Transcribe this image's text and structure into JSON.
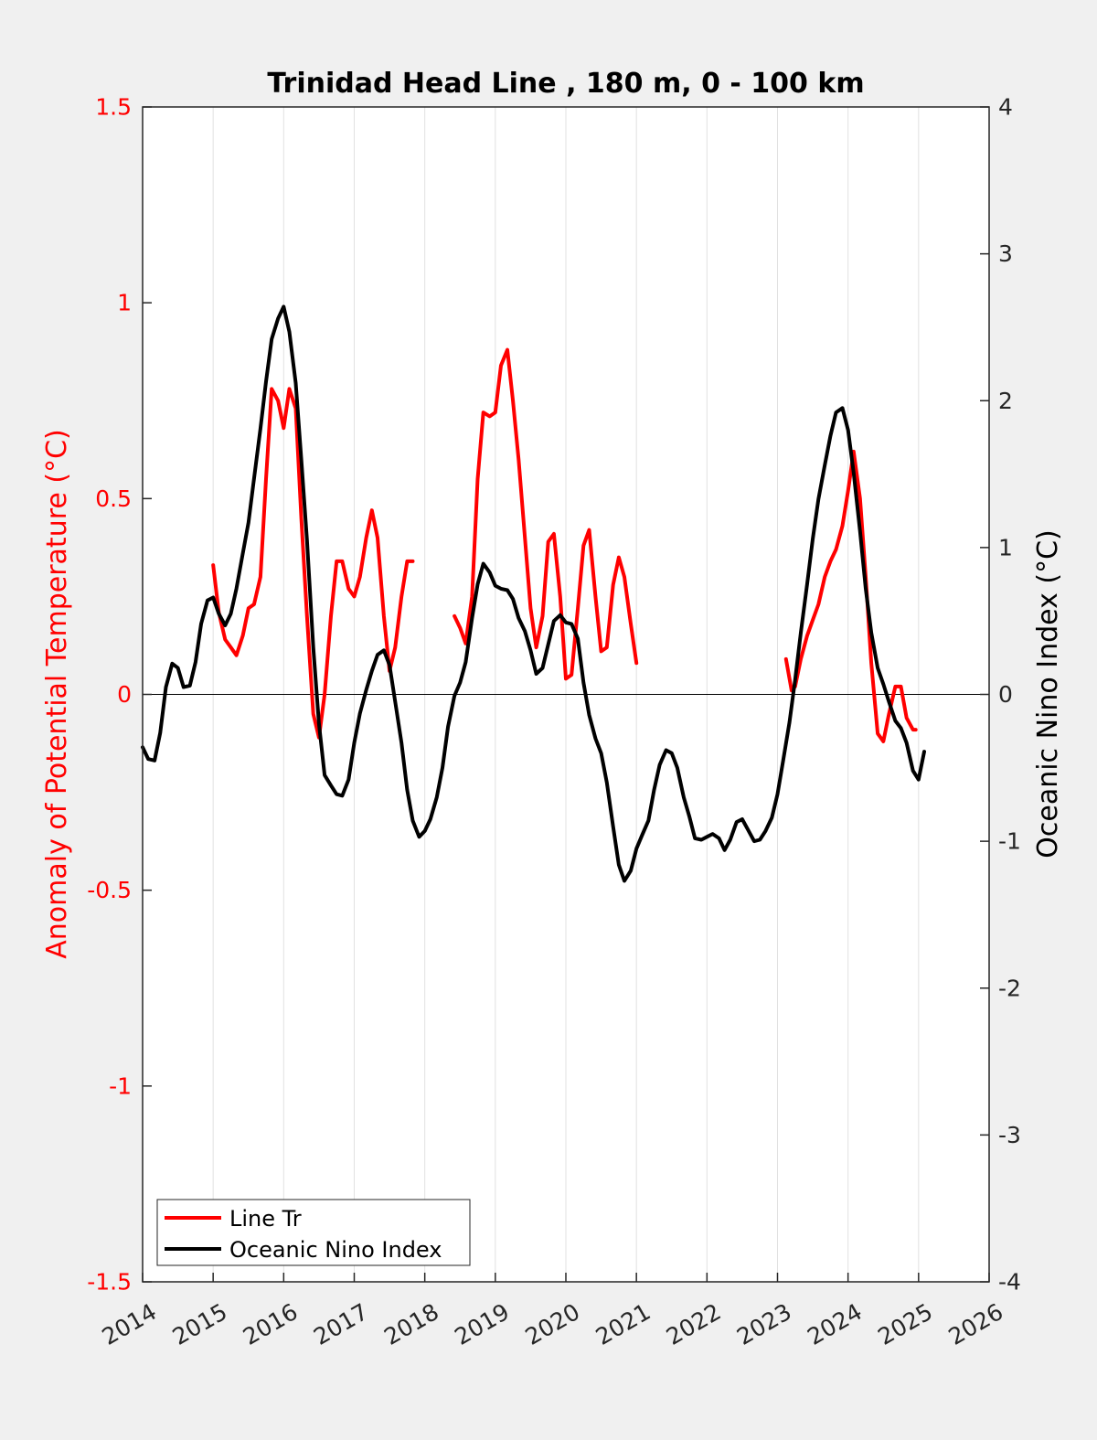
{
  "chart_data": {
    "type": "line",
    "title": "Trinidad Head Line , 180 m, 0 - 100 km",
    "xlabel": "",
    "ylabel_left": "Anomaly of Potential Temperature (°C)",
    "ylabel_right": "Oceanic Nino Index (°C)",
    "xlim": [
      2014,
      2026
    ],
    "ylim_left": [
      -1.5,
      1.5
    ],
    "ylim_right": [
      -4,
      4
    ],
    "x_ticks": [
      2014,
      2015,
      2016,
      2017,
      2018,
      2019,
      2020,
      2021,
      2022,
      2023,
      2024,
      2025,
      2026
    ],
    "x_tick_labels": [
      "2014",
      "2015",
      "2016",
      "2017",
      "2018",
      "2019",
      "2020",
      "2021",
      "2022",
      "2023",
      "2024",
      "2025",
      "2026"
    ],
    "y_ticks_left": [
      -1.5,
      -1,
      -0.5,
      0,
      0.5,
      1,
      1.5
    ],
    "y_tick_labels_left": [
      "-1.5",
      "-1",
      "-0.5",
      "0",
      "0.5",
      "1",
      "1.5"
    ],
    "y_ticks_right": [
      -4,
      -3,
      -2,
      -1,
      0,
      1,
      2,
      3,
      4
    ],
    "y_tick_labels_right": [
      "-4",
      "-3",
      "-2",
      "-1",
      "0",
      "1",
      "2",
      "3",
      "4"
    ],
    "grid": "x-only",
    "legend_position": "bottom-left",
    "series": [
      {
        "name": "Line Tr",
        "axis": "left",
        "color": "#ff0000",
        "segments": [
          [
            [
              2015.0,
              0.33
            ],
            [
              2015.08,
              0.21
            ],
            [
              2015.17,
              0.14
            ],
            [
              2015.25,
              0.12
            ],
            [
              2015.33,
              0.1
            ],
            [
              2015.42,
              0.15
            ],
            [
              2015.5,
              0.22
            ],
            [
              2015.58,
              0.23
            ],
            [
              2015.67,
              0.3
            ],
            [
              2015.75,
              0.55
            ],
            [
              2015.83,
              0.78
            ],
            [
              2015.92,
              0.75
            ],
            [
              2016.0,
              0.68
            ],
            [
              2016.08,
              0.78
            ],
            [
              2016.17,
              0.73
            ],
            [
              2016.25,
              0.45
            ],
            [
              2016.33,
              0.2
            ],
            [
              2016.42,
              -0.05
            ],
            [
              2016.5,
              -0.11
            ],
            [
              2016.58,
              0.0
            ],
            [
              2016.67,
              0.2
            ],
            [
              2016.75,
              0.34
            ],
            [
              2016.83,
              0.34
            ],
            [
              2016.92,
              0.27
            ],
            [
              2017.0,
              0.25
            ],
            [
              2017.08,
              0.3
            ],
            [
              2017.17,
              0.4
            ],
            [
              2017.25,
              0.47
            ],
            [
              2017.33,
              0.4
            ],
            [
              2017.42,
              0.2
            ],
            [
              2017.5,
              0.06
            ],
            [
              2017.58,
              0.12
            ],
            [
              2017.67,
              0.25
            ],
            [
              2017.75,
              0.34
            ],
            [
              2017.83,
              0.34
            ]
          ],
          [
            [
              2018.42,
              0.2
            ],
            [
              2018.5,
              0.17
            ],
            [
              2018.58,
              0.13
            ],
            [
              2018.67,
              0.25
            ],
            [
              2018.75,
              0.55
            ],
            [
              2018.83,
              0.72
            ],
            [
              2018.92,
              0.71
            ],
            [
              2019.0,
              0.72
            ],
            [
              2019.08,
              0.84
            ],
            [
              2019.17,
              0.88
            ],
            [
              2019.25,
              0.75
            ],
            [
              2019.33,
              0.6
            ],
            [
              2019.42,
              0.4
            ],
            [
              2019.5,
              0.22
            ],
            [
              2019.58,
              0.12
            ],
            [
              2019.67,
              0.2
            ],
            [
              2019.75,
              0.39
            ],
            [
              2019.83,
              0.41
            ],
            [
              2019.92,
              0.25
            ],
            [
              2020.0,
              0.04
            ],
            [
              2020.08,
              0.05
            ],
            [
              2020.17,
              0.22
            ],
            [
              2020.25,
              0.38
            ],
            [
              2020.33,
              0.42
            ],
            [
              2020.42,
              0.25
            ],
            [
              2020.5,
              0.11
            ],
            [
              2020.58,
              0.12
            ],
            [
              2020.67,
              0.28
            ],
            [
              2020.75,
              0.35
            ],
            [
              2020.83,
              0.3
            ],
            [
              2020.92,
              0.18
            ],
            [
              2021.0,
              0.08
            ]
          ],
          [
            [
              2023.12,
              0.09
            ],
            [
              2023.2,
              0.01
            ],
            [
              2023.25,
              0.02
            ],
            [
              2023.33,
              0.09
            ],
            [
              2023.42,
              0.15
            ],
            [
              2023.5,
              0.19
            ],
            [
              2023.58,
              0.23
            ],
            [
              2023.67,
              0.3
            ],
            [
              2023.75,
              0.34
            ],
            [
              2023.83,
              0.37
            ],
            [
              2023.92,
              0.43
            ],
            [
              2024.0,
              0.52
            ],
            [
              2024.08,
              0.62
            ],
            [
              2024.17,
              0.5
            ],
            [
              2024.25,
              0.3
            ],
            [
              2024.33,
              0.08
            ],
            [
              2024.42,
              -0.1
            ],
            [
              2024.5,
              -0.12
            ],
            [
              2024.58,
              -0.05
            ],
            [
              2024.67,
              0.02
            ],
            [
              2024.75,
              0.02
            ],
            [
              2024.83,
              -0.06
            ],
            [
              2024.92,
              -0.09
            ],
            [
              2024.96,
              -0.09
            ]
          ]
        ]
      },
      {
        "name": "Oceanic Nino Index",
        "axis": "right",
        "color": "#000000",
        "segments": [
          [
            [
              2014.0,
              -0.36
            ],
            [
              2014.08,
              -0.44
            ],
            [
              2014.17,
              -0.45
            ],
            [
              2014.25,
              -0.26
            ],
            [
              2014.33,
              0.05
            ],
            [
              2014.42,
              0.21
            ],
            [
              2014.5,
              0.18
            ],
            [
              2014.58,
              0.05
            ],
            [
              2014.67,
              0.06
            ],
            [
              2014.75,
              0.22
            ],
            [
              2014.83,
              0.48
            ],
            [
              2014.92,
              0.64
            ],
            [
              2015.0,
              0.66
            ],
            [
              2015.08,
              0.55
            ],
            [
              2015.17,
              0.47
            ],
            [
              2015.25,
              0.55
            ],
            [
              2015.33,
              0.72
            ],
            [
              2015.42,
              0.96
            ],
            [
              2015.5,
              1.17
            ],
            [
              2015.58,
              1.47
            ],
            [
              2015.67,
              1.81
            ],
            [
              2015.75,
              2.13
            ],
            [
              2015.83,
              2.42
            ],
            [
              2015.92,
              2.56
            ],
            [
              2016.0,
              2.64
            ],
            [
              2016.08,
              2.47
            ],
            [
              2016.17,
              2.12
            ],
            [
              2016.25,
              1.6
            ],
            [
              2016.33,
              1.05
            ],
            [
              2016.42,
              0.32
            ],
            [
              2016.5,
              -0.2
            ],
            [
              2016.58,
              -0.55
            ],
            [
              2016.67,
              -0.62
            ],
            [
              2016.75,
              -0.68
            ],
            [
              2016.83,
              -0.69
            ],
            [
              2016.92,
              -0.58
            ],
            [
              2017.0,
              -0.33
            ],
            [
              2017.08,
              -0.13
            ],
            [
              2017.17,
              0.03
            ],
            [
              2017.25,
              0.16
            ],
            [
              2017.33,
              0.27
            ],
            [
              2017.42,
              0.3
            ],
            [
              2017.5,
              0.2
            ],
            [
              2017.58,
              -0.05
            ],
            [
              2017.67,
              -0.33
            ],
            [
              2017.75,
              -0.65
            ],
            [
              2017.83,
              -0.86
            ],
            [
              2017.92,
              -0.97
            ],
            [
              2018.0,
              -0.93
            ],
            [
              2018.08,
              -0.85
            ],
            [
              2018.17,
              -0.7
            ],
            [
              2018.25,
              -0.5
            ],
            [
              2018.33,
              -0.22
            ],
            [
              2018.42,
              -0.01
            ],
            [
              2018.5,
              0.08
            ],
            [
              2018.58,
              0.22
            ],
            [
              2018.67,
              0.52
            ],
            [
              2018.75,
              0.75
            ],
            [
              2018.83,
              0.89
            ],
            [
              2018.92,
              0.83
            ],
            [
              2019.0,
              0.74
            ],
            [
              2019.08,
              0.72
            ],
            [
              2019.17,
              0.71
            ],
            [
              2019.25,
              0.65
            ],
            [
              2019.33,
              0.52
            ],
            [
              2019.42,
              0.43
            ],
            [
              2019.5,
              0.3
            ],
            [
              2019.58,
              0.14
            ],
            [
              2019.67,
              0.18
            ],
            [
              2019.75,
              0.34
            ],
            [
              2019.83,
              0.5
            ],
            [
              2019.92,
              0.54
            ],
            [
              2020.0,
              0.49
            ],
            [
              2020.08,
              0.48
            ],
            [
              2020.17,
              0.38
            ],
            [
              2020.25,
              0.08
            ],
            [
              2020.33,
              -0.14
            ],
            [
              2020.42,
              -0.3
            ],
            [
              2020.5,
              -0.4
            ],
            [
              2020.58,
              -0.6
            ],
            [
              2020.67,
              -0.9
            ],
            [
              2020.75,
              -1.16
            ],
            [
              2020.83,
              -1.27
            ],
            [
              2020.92,
              -1.2
            ],
            [
              2021.0,
              -1.05
            ],
            [
              2021.08,
              -0.96
            ],
            [
              2021.17,
              -0.86
            ],
            [
              2021.25,
              -0.65
            ],
            [
              2021.33,
              -0.48
            ],
            [
              2021.42,
              -0.38
            ],
            [
              2021.5,
              -0.4
            ],
            [
              2021.58,
              -0.5
            ],
            [
              2021.67,
              -0.7
            ],
            [
              2021.75,
              -0.83
            ],
            [
              2021.83,
              -0.98
            ],
            [
              2021.92,
              -0.99
            ],
            [
              2022.0,
              -0.97
            ],
            [
              2022.08,
              -0.95
            ],
            [
              2022.17,
              -0.98
            ],
            [
              2022.25,
              -1.06
            ],
            [
              2022.33,
              -0.99
            ],
            [
              2022.42,
              -0.87
            ],
            [
              2022.5,
              -0.85
            ],
            [
              2022.58,
              -0.92
            ],
            [
              2022.67,
              -1.0
            ],
            [
              2022.75,
              -0.99
            ],
            [
              2022.83,
              -0.93
            ],
            [
              2022.92,
              -0.84
            ],
            [
              2023.0,
              -0.68
            ],
            [
              2023.08,
              -0.45
            ],
            [
              2023.17,
              -0.19
            ],
            [
              2023.25,
              0.1
            ],
            [
              2023.33,
              0.42
            ],
            [
              2023.42,
              0.75
            ],
            [
              2023.5,
              1.06
            ],
            [
              2023.58,
              1.33
            ],
            [
              2023.67,
              1.56
            ],
            [
              2023.75,
              1.76
            ],
            [
              2023.83,
              1.92
            ],
            [
              2023.92,
              1.95
            ],
            [
              2024.0,
              1.8
            ],
            [
              2024.08,
              1.51
            ],
            [
              2024.17,
              1.11
            ],
            [
              2024.25,
              0.72
            ],
            [
              2024.33,
              0.42
            ],
            [
              2024.42,
              0.18
            ],
            [
              2024.5,
              0.07
            ],
            [
              2024.58,
              -0.05
            ],
            [
              2024.67,
              -0.18
            ],
            [
              2024.75,
              -0.23
            ],
            [
              2024.83,
              -0.33
            ],
            [
              2024.92,
              -0.52
            ],
            [
              2025.0,
              -0.58
            ],
            [
              2025.08,
              -0.39
            ]
          ]
        ]
      }
    ]
  }
}
